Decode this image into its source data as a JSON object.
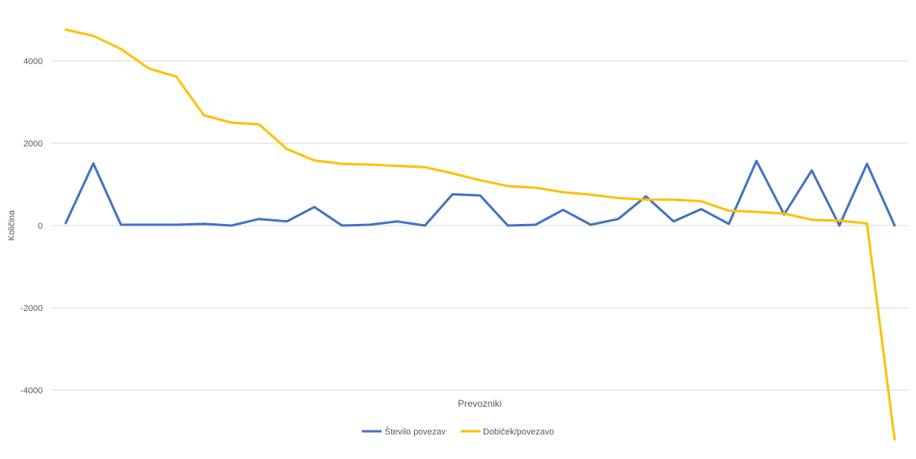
{
  "chart_data": {
    "type": "line",
    "title": "",
    "xlabel": "Prevozniki",
    "ylabel": "Količina",
    "ylim": [
      -5200,
      5000
    ],
    "yticks": [
      -4000,
      -2000,
      0,
      2000,
      4000
    ],
    "grid": true,
    "legend_position": "bottom",
    "x": [
      1,
      2,
      3,
      4,
      5,
      6,
      7,
      8,
      9,
      10,
      11,
      12,
      13,
      14,
      15,
      16,
      17,
      18,
      19,
      20,
      21,
      22,
      23,
      24,
      25,
      26,
      27,
      28,
      29,
      30,
      31
    ],
    "series": [
      {
        "name": "Število povezav",
        "color": "#4472C4",
        "values": [
          60,
          1510,
          20,
          20,
          20,
          40,
          0,
          160,
          100,
          450,
          0,
          20,
          100,
          0,
          760,
          730,
          0,
          20,
          380,
          20,
          160,
          710,
          100,
          400,
          40,
          1570,
          270,
          1340,
          0,
          1500,
          0
        ]
      },
      {
        "name": "Dobiček/povezavo",
        "color": "#FFC000",
        "values": [
          4760,
          4610,
          4290,
          3820,
          3620,
          2680,
          2500,
          2460,
          1860,
          1580,
          1500,
          1480,
          1450,
          1420,
          1270,
          1100,
          960,
          920,
          810,
          750,
          670,
          630,
          630,
          590,
          360,
          330,
          290,
          140,
          120,
          50,
          -5200
        ]
      }
    ]
  }
}
